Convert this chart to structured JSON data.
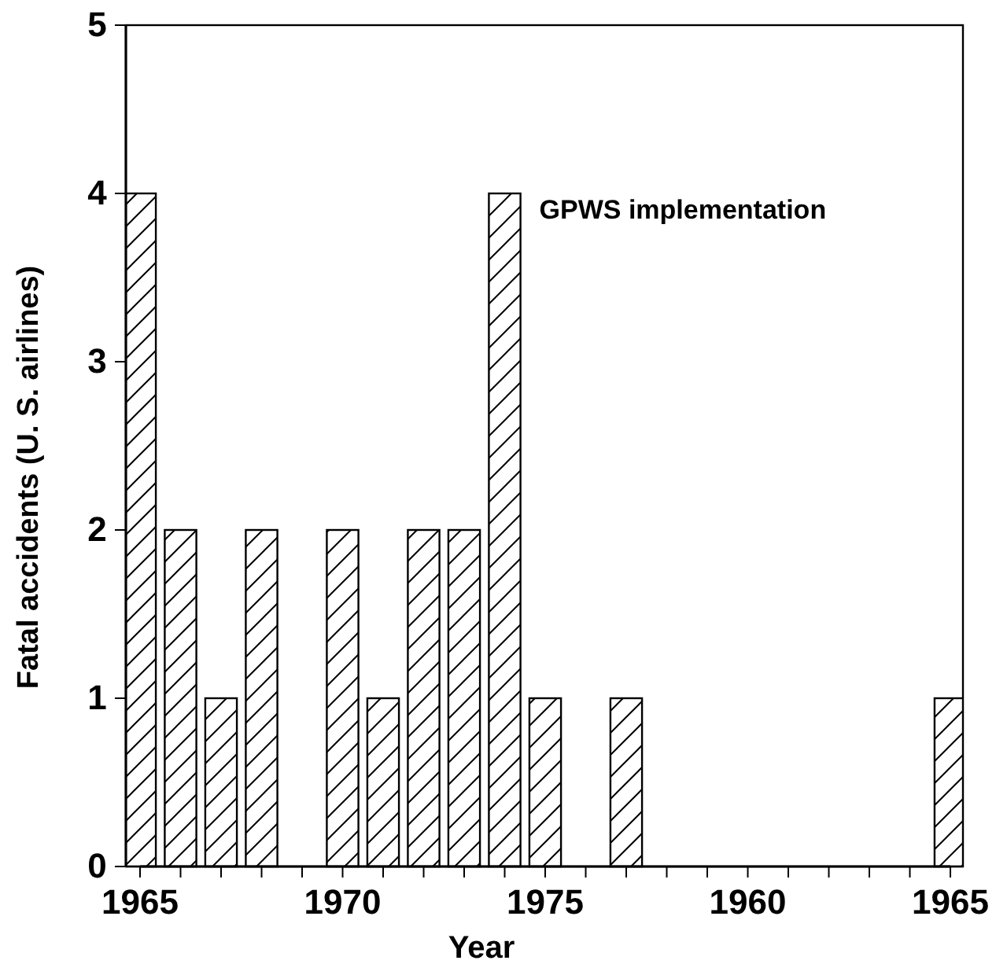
{
  "chart_data": {
    "type": "bar",
    "xlabel": "Year",
    "ylabel": "Fatal accidents (U. S. airlines)",
    "categories": [
      "1965",
      null,
      null,
      null,
      null,
      "1970",
      null,
      null,
      null,
      null,
      "1975",
      null,
      null,
      null,
      null,
      "1960",
      null,
      null,
      null,
      null,
      "1965"
    ],
    "values": [
      4,
      2,
      1,
      2,
      0,
      2,
      1,
      2,
      2,
      4,
      1,
      0,
      1,
      0,
      0,
      0,
      0,
      0,
      0,
      0,
      1
    ],
    "color": "#000000",
    "ylim": [
      0,
      5
    ],
    "yticks": [
      0,
      1,
      2,
      3,
      4,
      5
    ],
    "annotations": [
      "GPWS implementation"
    ],
    "grid": false
  }
}
